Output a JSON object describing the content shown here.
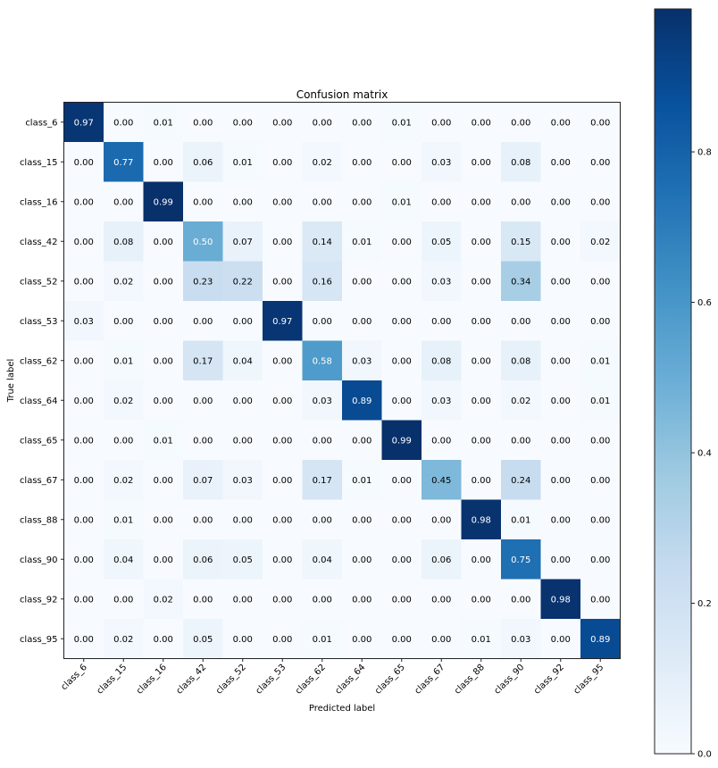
{
  "chart_data": {
    "type": "heatmap",
    "title": "Confusion matrix",
    "xlabel": "Predicted label",
    "ylabel": "True label",
    "colormap": "Blues",
    "value_range": [
      0.0,
      0.99
    ],
    "colorbar_ticks": [
      "0.0",
      "0.2",
      "0.4",
      "0.6",
      "0.8"
    ],
    "colorbar_placement": "right",
    "x_categories": [
      "class_6",
      "class_15",
      "class_16",
      "class_42",
      "class_52",
      "class_53",
      "class_62",
      "class_64",
      "class_65",
      "class_67",
      "class_88",
      "class_90",
      "class_92",
      "class_95"
    ],
    "y_categories": [
      "class_6",
      "class_15",
      "class_16",
      "class_42",
      "class_52",
      "class_53",
      "class_62",
      "class_64",
      "class_65",
      "class_67",
      "class_88",
      "class_90",
      "class_92",
      "class_95"
    ],
    "values": [
      [
        0.97,
        0.0,
        0.01,
        0.0,
        0.0,
        0.0,
        0.0,
        0.0,
        0.01,
        0.0,
        0.0,
        0.0,
        0.0,
        0.0
      ],
      [
        0.0,
        0.77,
        0.0,
        0.06,
        0.01,
        0.0,
        0.02,
        0.0,
        0.0,
        0.03,
        0.0,
        0.08,
        0.0,
        0.0
      ],
      [
        0.0,
        0.0,
        0.99,
        0.0,
        0.0,
        0.0,
        0.0,
        0.0,
        0.01,
        0.0,
        0.0,
        0.0,
        0.0,
        0.0
      ],
      [
        0.0,
        0.08,
        0.0,
        0.5,
        0.07,
        0.0,
        0.14,
        0.01,
        0.0,
        0.05,
        0.0,
        0.15,
        0.0,
        0.02
      ],
      [
        0.0,
        0.02,
        0.0,
        0.23,
        0.22,
        0.0,
        0.16,
        0.0,
        0.0,
        0.03,
        0.0,
        0.34,
        0.0,
        0.0
      ],
      [
        0.03,
        0.0,
        0.0,
        0.0,
        0.0,
        0.97,
        0.0,
        0.0,
        0.0,
        0.0,
        0.0,
        0.0,
        0.0,
        0.0
      ],
      [
        0.0,
        0.01,
        0.0,
        0.17,
        0.04,
        0.0,
        0.58,
        0.03,
        0.0,
        0.08,
        0.0,
        0.08,
        0.0,
        0.01
      ],
      [
        0.0,
        0.02,
        0.0,
        0.0,
        0.0,
        0.0,
        0.03,
        0.89,
        0.0,
        0.03,
        0.0,
        0.02,
        0.0,
        0.01
      ],
      [
        0.0,
        0.0,
        0.01,
        0.0,
        0.0,
        0.0,
        0.0,
        0.0,
        0.99,
        0.0,
        0.0,
        0.0,
        0.0,
        0.0
      ],
      [
        0.0,
        0.02,
        0.0,
        0.07,
        0.03,
        0.0,
        0.17,
        0.01,
        0.0,
        0.45,
        0.0,
        0.24,
        0.0,
        0.0
      ],
      [
        0.0,
        0.01,
        0.0,
        0.0,
        0.0,
        0.0,
        0.0,
        0.0,
        0.0,
        0.0,
        0.98,
        0.01,
        0.0,
        0.0
      ],
      [
        0.0,
        0.04,
        0.0,
        0.06,
        0.05,
        0.0,
        0.04,
        0.0,
        0.0,
        0.06,
        0.0,
        0.75,
        0.0,
        0.0
      ],
      [
        0.0,
        0.0,
        0.02,
        0.0,
        0.0,
        0.0,
        0.0,
        0.0,
        0.0,
        0.0,
        0.0,
        0.0,
        0.98,
        0.0
      ],
      [
        0.0,
        0.02,
        0.0,
        0.05,
        0.0,
        0.0,
        0.01,
        0.0,
        0.0,
        0.0,
        0.01,
        0.03,
        0.0,
        0.89
      ]
    ]
  }
}
